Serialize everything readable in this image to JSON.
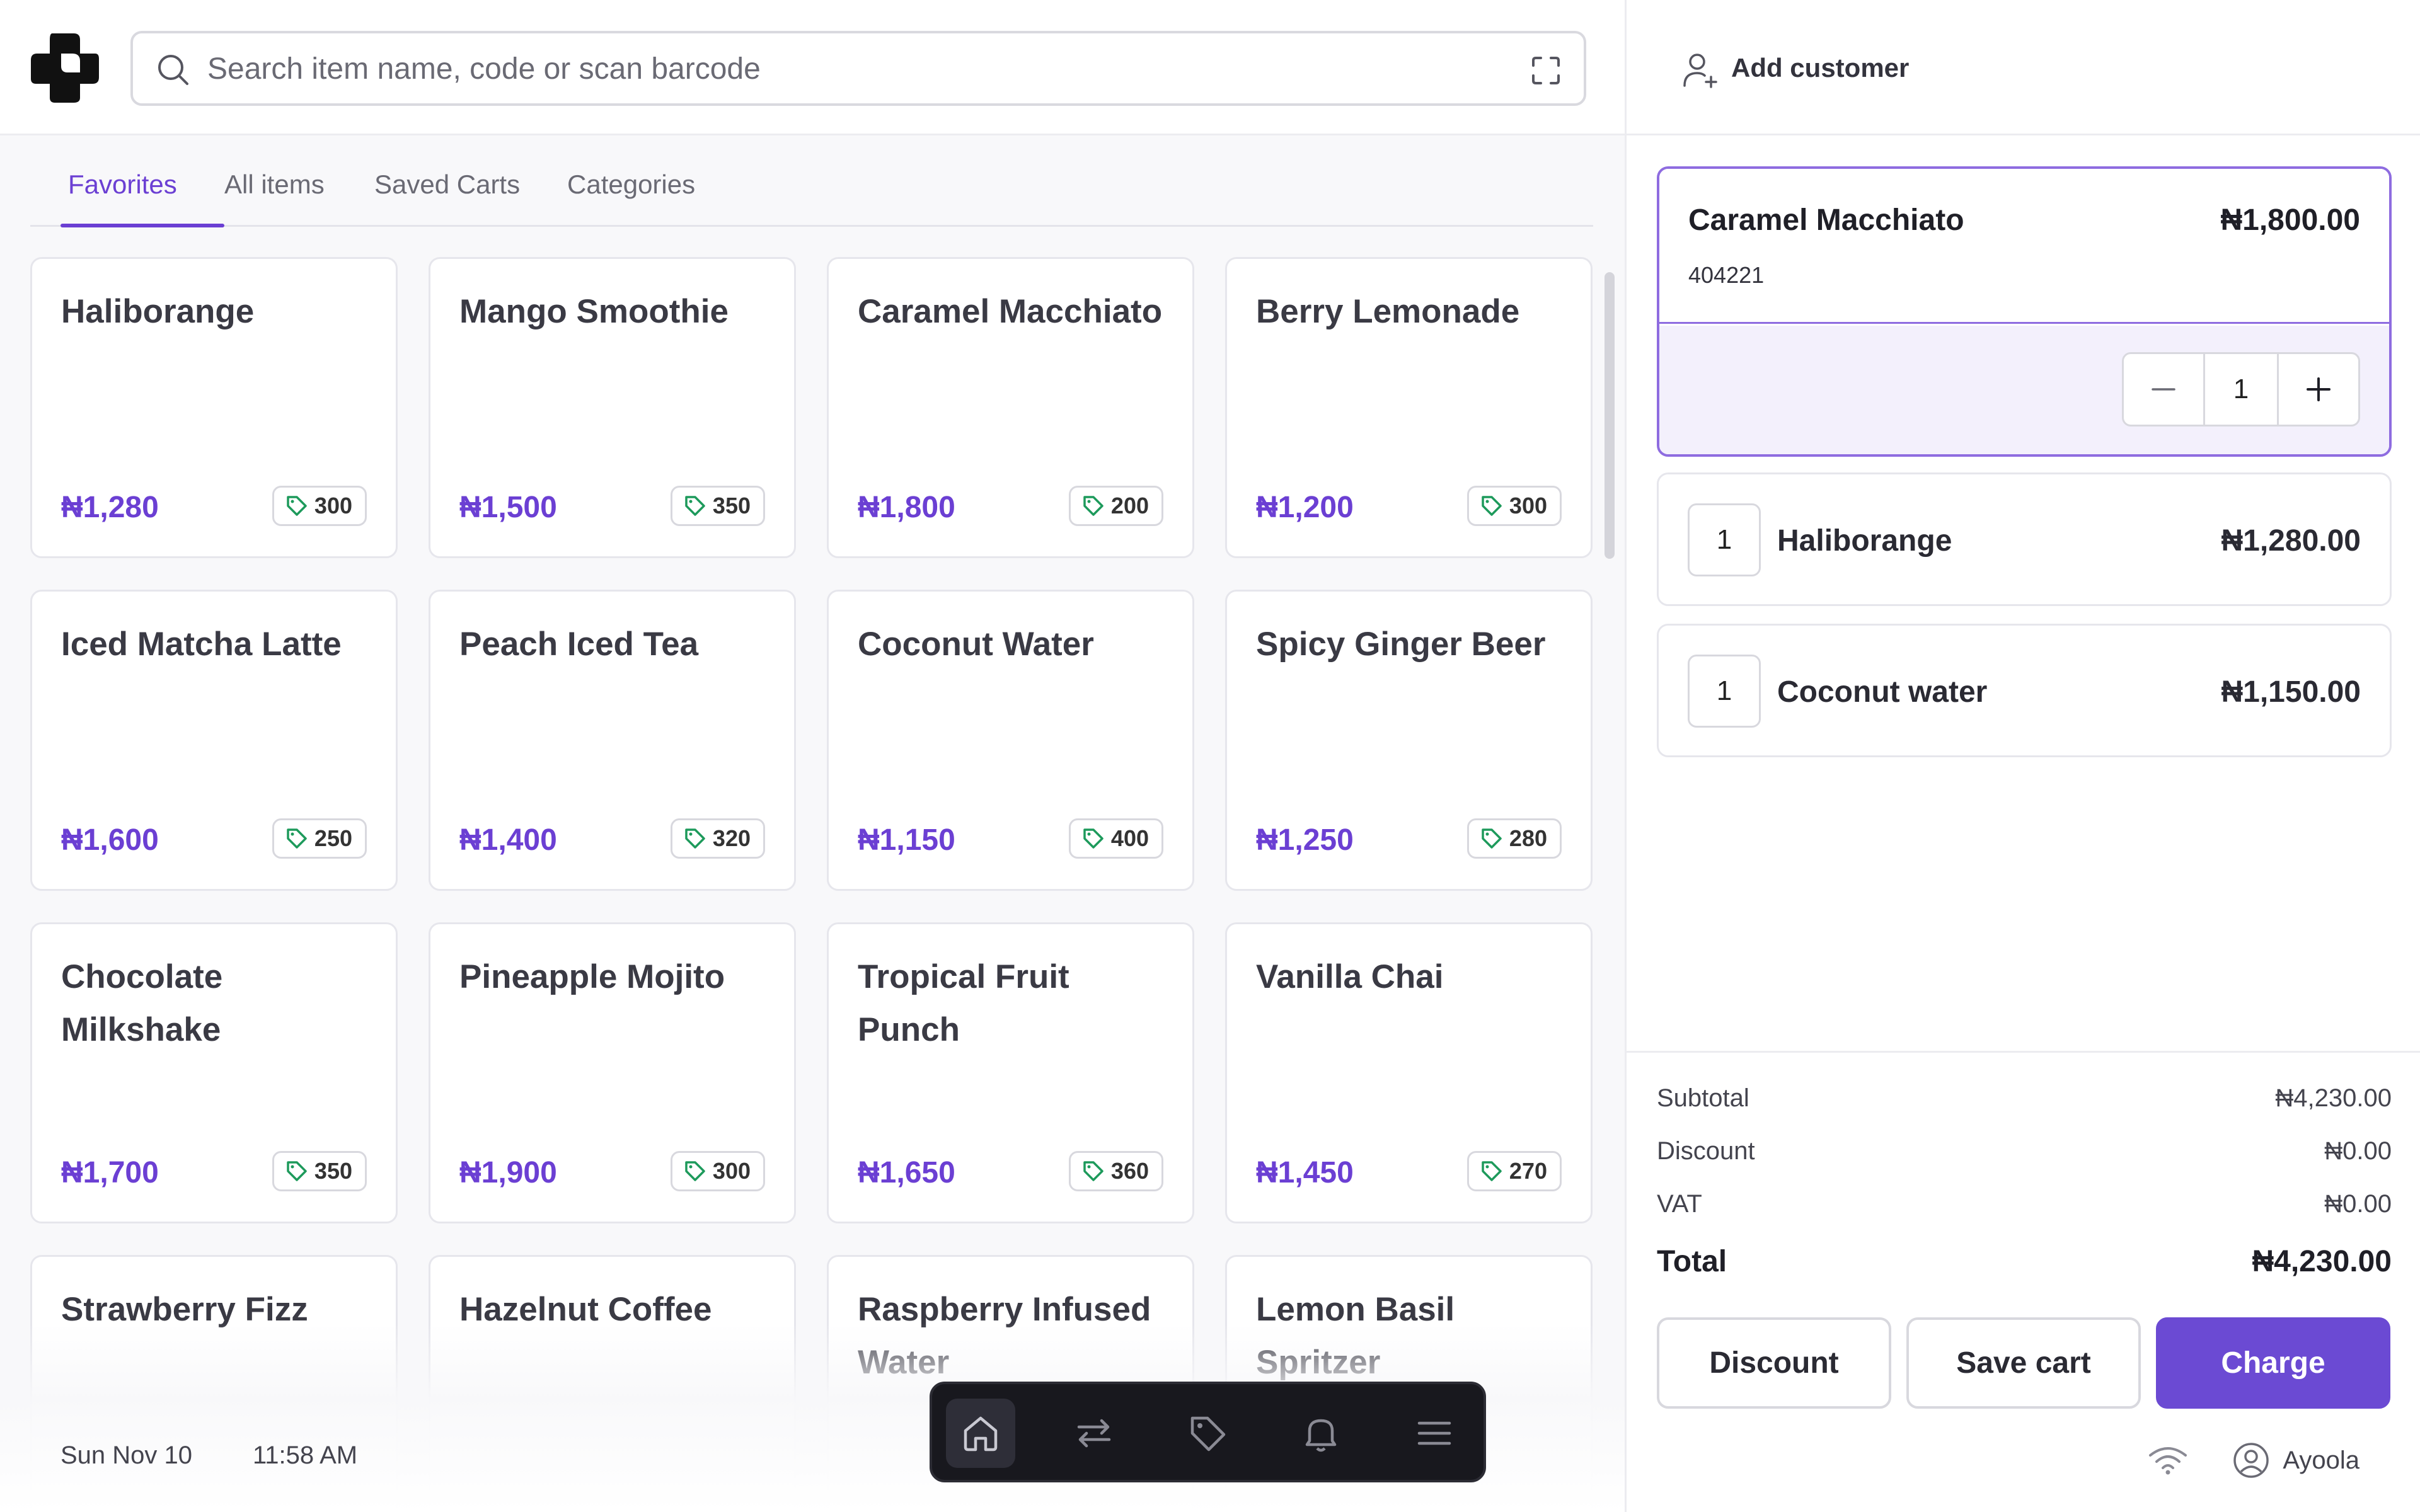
{
  "search": {
    "placeholder": "Search item name, code or scan barcode"
  },
  "tabs": [
    {
      "label": "Favorites",
      "active": true
    },
    {
      "label": "All items"
    },
    {
      "label": "Saved Carts"
    },
    {
      "label": "Categories"
    }
  ],
  "products": [
    {
      "name": "Haliborange",
      "price": "₦1,280",
      "stock": "300"
    },
    {
      "name": "Mango Smoothie",
      "price": "₦1,500",
      "stock": "350"
    },
    {
      "name": "Caramel Macchiato",
      "price": "₦1,800",
      "stock": "200"
    },
    {
      "name": "Berry Lemonade",
      "price": "₦1,200",
      "stock": "300"
    },
    {
      "name": "Iced Matcha Latte",
      "price": "₦1,600",
      "stock": "250"
    },
    {
      "name": "Peach Iced Tea",
      "price": "₦1,400",
      "stock": "320"
    },
    {
      "name": "Coconut Water",
      "price": "₦1,150",
      "stock": "400"
    },
    {
      "name": "Spicy Ginger Beer",
      "price": "₦1,250",
      "stock": "280"
    },
    {
      "name": "Chocolate Milkshake",
      "price": "₦1,700",
      "stock": "350"
    },
    {
      "name": "Pineapple Mojito",
      "price": "₦1,900",
      "stock": "300"
    },
    {
      "name": "Tropical Fruit Punch",
      "price": "₦1,650",
      "stock": "360"
    },
    {
      "name": "Vanilla Chai",
      "price": "₦1,450",
      "stock": "270"
    },
    {
      "name": "Strawberry Fizz",
      "price": "",
      "stock": ""
    },
    {
      "name": "Hazelnut Coffee",
      "price": "",
      "stock": ""
    },
    {
      "name": "Raspberry Infused Water",
      "price": "",
      "stock": ""
    },
    {
      "name": "Lemon Basil Spritzer",
      "price": "",
      "stock": ""
    }
  ],
  "footer": {
    "date": "Sun Nov 10",
    "time": "11:58 AM"
  },
  "dock": [
    "home-icon",
    "transfer-icon",
    "tag-icon",
    "bell-icon",
    "menu-icon"
  ],
  "customer": {
    "label": "Add customer"
  },
  "cart": {
    "expanded": {
      "name": "Caramel Macchiato",
      "price": "₦1,800.00",
      "code": "404221",
      "qty": "1"
    },
    "items": [
      {
        "qty": "1",
        "name": "Haliborange",
        "price": "₦1,280.00"
      },
      {
        "qty": "1",
        "name": "Coconut water",
        "price": "₦1,150.00"
      }
    ]
  },
  "totals": {
    "subtotal_label": "Subtotal",
    "subtotal": "₦4,230.00",
    "discount_label": "Discount",
    "discount": "₦0.00",
    "vat_label": "VAT",
    "vat": "₦0.00",
    "total_label": "Total",
    "total": "₦4,230.00"
  },
  "actions": {
    "discount": "Discount",
    "save": "Save cart",
    "charge": "Charge"
  },
  "status": {
    "user": "Ayoola"
  },
  "colors": {
    "accent": "#6b3fd3",
    "tag_green": "#1d9a5b",
    "dock_bg": "#18181e"
  }
}
